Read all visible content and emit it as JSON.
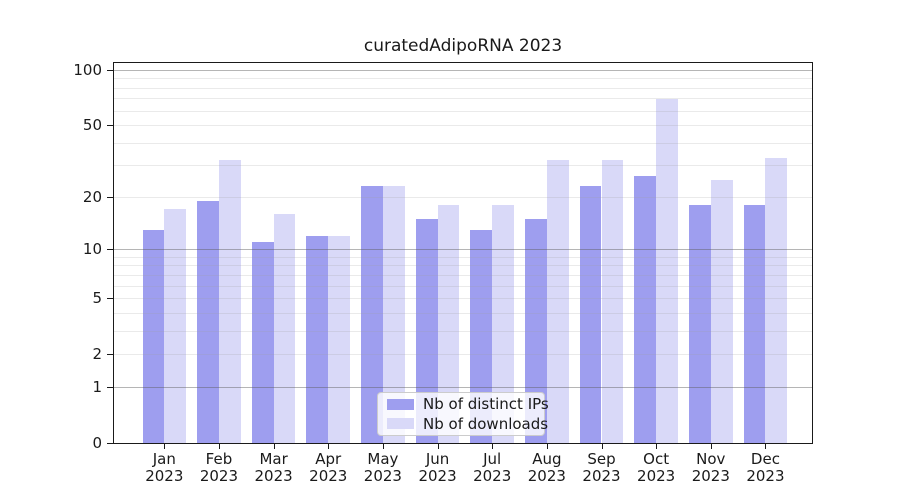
{
  "chart_data": {
    "type": "bar",
    "title": "curatedAdipoRNA 2023",
    "categories": [
      "Jan 2023",
      "Feb 2023",
      "Mar 2023",
      "Apr 2023",
      "May 2023",
      "Jun 2023",
      "Jul 2023",
      "Aug 2023",
      "Sep 2023",
      "Oct 2023",
      "Nov 2023",
      "Dec 2023"
    ],
    "series": [
      {
        "name": "Nb of distinct IPs",
        "color": "#9e9eef",
        "values": [
          13,
          19,
          11,
          12,
          23,
          15,
          13,
          15,
          23,
          26,
          18,
          18
        ]
      },
      {
        "name": "Nb of downloads",
        "color": "#d9d9f8",
        "values": [
          17,
          32,
          16,
          12,
          23,
          18,
          18,
          32,
          32,
          69,
          25,
          33
        ]
      }
    ],
    "yscale": "log1p",
    "ylim": [
      0,
      110
    ],
    "xlabel": "",
    "ylabel": "",
    "grid": "horizontal",
    "ytick_values": [
      100,
      50,
      20,
      10,
      5,
      2,
      1,
      0
    ],
    "ytick_labels": [
      "100",
      "50",
      "20",
      "10",
      "5",
      "2",
      "1",
      "0"
    ],
    "minor_grid_values": [
      2,
      3,
      4,
      5,
      6,
      7,
      8,
      9,
      20,
      30,
      40,
      50,
      60,
      70,
      80,
      90
    ],
    "major_grid_values": [
      1,
      10,
      100
    ],
    "legend_position": "lower center"
  }
}
